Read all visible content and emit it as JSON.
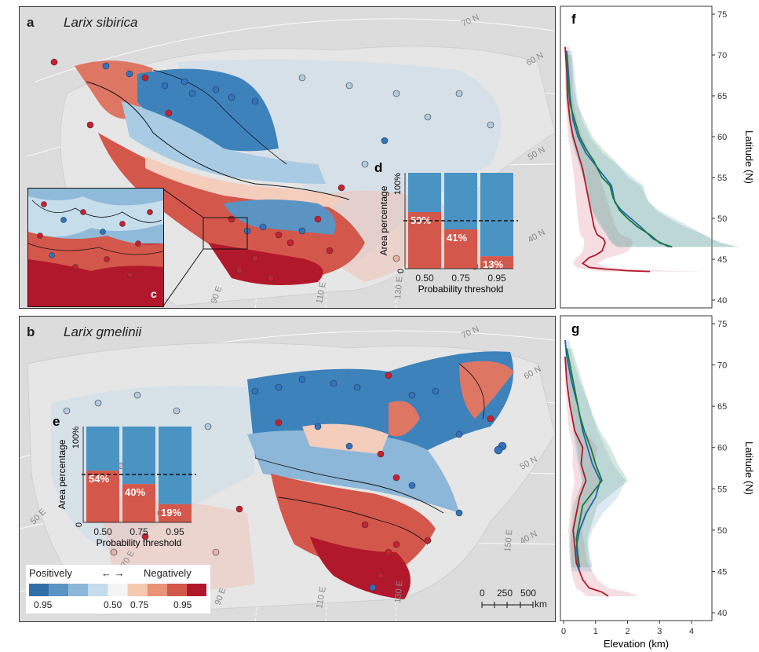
{
  "panels": {
    "a": {
      "label": "a",
      "species": "Larix sibirica"
    },
    "b": {
      "label": "b",
      "species": "Larix gmelinii"
    },
    "c": {
      "label": "c"
    },
    "d": {
      "label": "d"
    },
    "e": {
      "label": "e"
    },
    "f": {
      "label": "f"
    },
    "g": {
      "label": "g"
    }
  },
  "map_grid_labels_a": [
    "70 N",
    "60 N",
    "50 N",
    "40 N",
    "90 E",
    "110 E",
    "130 E"
  ],
  "map_grid_labels_b": [
    "70 N",
    "60 N",
    "50 N",
    "40 N",
    "50 E",
    "70 E",
    "90 E",
    "110 E",
    "130 E",
    "150 E"
  ],
  "legend": {
    "left": "Positively",
    "arrow": "←  →",
    "right": "Negatively",
    "ticks": [
      "0.95",
      "0.50",
      "0.75",
      "0.95"
    ],
    "colors": [
      "#2f6fa8",
      "#5b93c2",
      "#8db7d8",
      "#c4dcec",
      "#f4f4f4",
      "#f7c8b0",
      "#eb9377",
      "#d4574b",
      "#b2182b"
    ]
  },
  "scale_bar": {
    "ticks": [
      "0",
      "250",
      "500"
    ],
    "unit": "km"
  },
  "chart_data": [
    {
      "id": "d",
      "type": "bar",
      "categories": [
        "0.50",
        "0.75",
        "0.95"
      ],
      "values": [
        59,
        41,
        13
      ],
      "value_labels": [
        "59%",
        "41%",
        "13%"
      ],
      "xlabel": "Probability threshold",
      "ylabel": "Area percentage",
      "yticks": [
        "0",
        "100%"
      ],
      "ylim": [
        0,
        100
      ],
      "reference_line": 50,
      "colors": {
        "negative": "#d4574b",
        "positive": "#4a94c4"
      }
    },
    {
      "id": "e",
      "type": "bar",
      "categories": [
        "0.50",
        "0.75",
        "0.95"
      ],
      "values": [
        54,
        40,
        19
      ],
      "value_labels": [
        "54%",
        "40%",
        "19%"
      ],
      "xlabel": "Probability threshold",
      "ylabel": "Area percentage",
      "yticks": [
        "0",
        "100%"
      ],
      "ylim": [
        0,
        100
      ],
      "reference_line": 50,
      "colors": {
        "negative": "#d4574b",
        "positive": "#4a94c4"
      }
    },
    {
      "id": "f",
      "type": "line",
      "ylabel": "Latitude (N)",
      "yticks": [
        40,
        45,
        50,
        55,
        60,
        65,
        70,
        75
      ],
      "ylim": [
        40,
        75
      ],
      "xlim": [
        0,
        4
      ],
      "series": [
        {
          "color": "#b2182b",
          "points": [
            [
              0.05,
              71
            ],
            [
              0.1,
              68
            ],
            [
              0.12,
              65
            ],
            [
              0.2,
              62
            ],
            [
              0.3,
              60
            ],
            [
              0.45,
              58
            ],
            [
              0.6,
              56
            ],
            [
              0.7,
              54
            ],
            [
              0.8,
              52
            ],
            [
              0.9,
              50
            ],
            [
              0.95,
              49
            ],
            [
              1.05,
              48
            ],
            [
              1.25,
              47.5
            ],
            [
              1.3,
              47
            ],
            [
              1.2,
              46
            ],
            [
              1.0,
              45.5
            ],
            [
              0.8,
              45.2
            ],
            [
              0.6,
              44.5
            ],
            [
              0.8,
              44
            ],
            [
              1.3,
              43.8
            ],
            [
              2.0,
              43.6
            ],
            [
              2.7,
              43.5
            ]
          ]
        },
        {
          "color": "#2166ac",
          "points": [
            [
              0.1,
              70.5
            ],
            [
              0.15,
              68
            ],
            [
              0.2,
              65
            ],
            [
              0.3,
              62
            ],
            [
              0.45,
              60
            ],
            [
              0.7,
              58
            ],
            [
              0.9,
              57
            ],
            [
              1.1,
              56
            ],
            [
              1.3,
              55
            ],
            [
              1.5,
              54
            ],
            [
              1.6,
              52
            ],
            [
              1.8,
              51
            ],
            [
              2.1,
              50
            ],
            [
              2.4,
              49
            ],
            [
              2.8,
              47.5
            ],
            [
              3.3,
              46.5
            ]
          ]
        },
        {
          "color": "#1a7a3a",
          "points": [
            [
              0.1,
              70
            ],
            [
              0.13,
              67
            ],
            [
              0.2,
              64
            ],
            [
              0.35,
              62
            ],
            [
              0.5,
              60
            ],
            [
              0.7,
              58.5
            ],
            [
              0.95,
              57
            ],
            [
              1.2,
              55
            ],
            [
              1.45,
              54
            ],
            [
              1.55,
              52.5
            ],
            [
              1.75,
              51
            ],
            [
              2.0,
              50
            ],
            [
              2.3,
              49
            ],
            [
              2.7,
              48
            ],
            [
              3.0,
              47
            ],
            [
              3.4,
              46.5
            ]
          ]
        }
      ]
    },
    {
      "id": "g",
      "type": "line",
      "xlabel": "Elevation (km)",
      "ylabel": "Latitude (N)",
      "xticks": [
        0,
        1,
        2,
        3,
        4
      ],
      "yticks": [
        40,
        45,
        50,
        55,
        60,
        65,
        70,
        75
      ],
      "ylim": [
        40,
        75
      ],
      "xlim": [
        0,
        4
      ],
      "series": [
        {
          "color": "#b2182b",
          "points": [
            [
              0.05,
              71
            ],
            [
              0.1,
              68
            ],
            [
              0.2,
              65
            ],
            [
              0.35,
              62
            ],
            [
              0.6,
              60
            ],
            [
              0.55,
              58
            ],
            [
              0.7,
              56
            ],
            [
              0.5,
              54
            ],
            [
              0.4,
              52
            ],
            [
              0.3,
              50
            ],
            [
              0.35,
              48
            ],
            [
              0.4,
              46
            ],
            [
              0.5,
              45
            ],
            [
              0.6,
              44
            ],
            [
              0.8,
              43
            ],
            [
              1.2,
              42.5
            ],
            [
              1.4,
              42
            ]
          ]
        },
        {
          "color": "#2166ac",
          "points": [
            [
              0.05,
              73
            ],
            [
              0.1,
              71
            ],
            [
              0.25,
              68
            ],
            [
              0.45,
              65
            ],
            [
              0.6,
              62
            ],
            [
              0.75,
              60
            ],
            [
              0.9,
              58
            ],
            [
              1.15,
              56
            ],
            [
              1.0,
              54
            ],
            [
              0.7,
              52
            ],
            [
              0.5,
              50
            ],
            [
              0.4,
              48
            ],
            [
              0.45,
              46
            ],
            [
              0.5,
              45
            ]
          ]
        },
        {
          "color": "#1a7a3a",
          "points": [
            [
              0.1,
              72
            ],
            [
              0.2,
              70
            ],
            [
              0.35,
              67
            ],
            [
              0.5,
              64
            ],
            [
              0.65,
              62
            ],
            [
              0.85,
              60
            ],
            [
              1.0,
              58
            ],
            [
              1.2,
              56
            ],
            [
              0.9,
              54.5
            ],
            [
              0.6,
              53
            ],
            [
              0.5,
              51
            ],
            [
              0.4,
              49
            ],
            [
              0.45,
              47
            ],
            [
              0.5,
              45.5
            ]
          ]
        }
      ]
    }
  ]
}
